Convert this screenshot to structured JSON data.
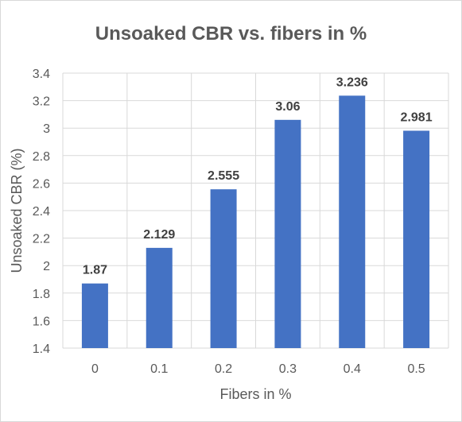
{
  "chart_data": {
    "type": "bar",
    "title": "Unsoaked CBR vs. fibers in %",
    "xlabel": "Fibers in %",
    "ylabel": "Unsoaked CBR (%)",
    "categories": [
      "0",
      "0.1",
      "0.2",
      "0.3",
      "0.4",
      "0.5"
    ],
    "values": [
      1.87,
      2.129,
      2.555,
      3.06,
      3.236,
      2.981
    ],
    "data_labels": [
      "1.87",
      "2.129",
      "2.555",
      "3.06",
      "3.236",
      "2.981"
    ],
    "ylim": [
      1.4,
      3.4
    ],
    "yticks": [
      "1.4",
      "1.6",
      "1.8",
      "2",
      "2.2",
      "2.4",
      "2.6",
      "2.8",
      "3",
      "3.2",
      "3.4"
    ],
    "grid": true,
    "bar_color": "#4472c4",
    "grid_color": "#d9d9d9"
  }
}
